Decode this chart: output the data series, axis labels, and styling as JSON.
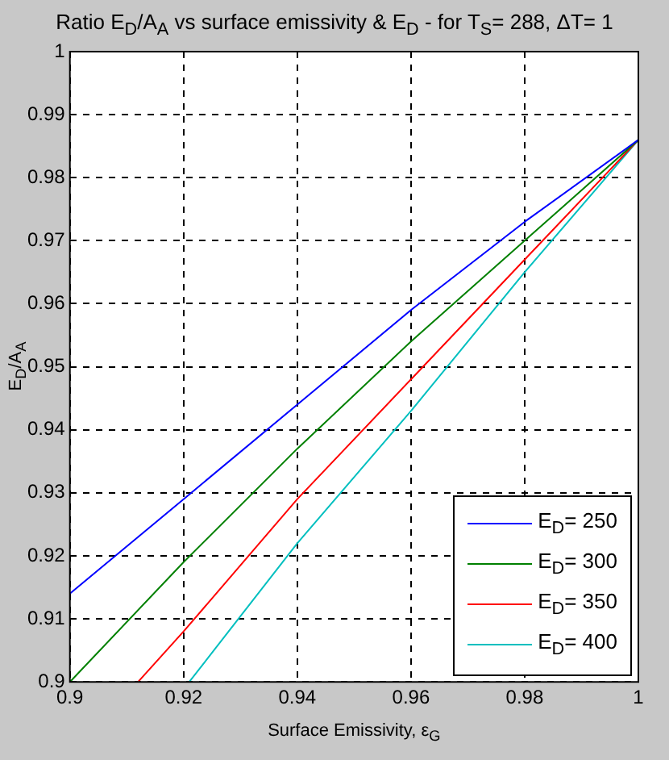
{
  "chart_data": {
    "type": "line",
    "title": "Ratio E$_{D}$/A$_{A}$ vs surface emissivity & E$_{D}$ - for T$_{S}$= 288, ΔT= 1",
    "xlabel": "Surface Emissivity, ε$_{G}$",
    "ylabel": "E$_{D}$/A$_{A}$",
    "x": [
      0.9,
      0.92,
      0.94,
      0.96,
      0.98,
      1
    ],
    "series": [
      {
        "name": "E$_{D}$= 250",
        "color": "#0000ff",
        "values": [
          0.914,
          0.929,
          0.944,
          0.959,
          0.973,
          0.986
        ]
      },
      {
        "name": "E$_{D}$= 300",
        "color": "#008000",
        "values": [
          0.9,
          0.919,
          0.937,
          0.954,
          0.97,
          0.986
        ]
      },
      {
        "name": "E$_{D}$= 350",
        "color": "#ff0000",
        "x": [
          0.912,
          0.92,
          0.94,
          0.96,
          0.98,
          1
        ],
        "values": [
          0.9,
          0.908,
          0.929,
          0.948,
          0.967,
          0.986
        ]
      },
      {
        "name": "E$_{D}$= 400",
        "color": "#00bfbf",
        "x": [
          0.921,
          0.94,
          0.96,
          0.98,
          1
        ],
        "values": [
          0.9,
          0.922,
          0.943,
          0.965,
          0.986
        ]
      }
    ],
    "xlim": [
      0.9,
      1
    ],
    "ylim": [
      0.9,
      1
    ],
    "xticks": [
      0.9,
      0.92,
      0.94,
      0.96,
      0.98,
      1
    ],
    "yticks": [
      0.9,
      0.91,
      0.92,
      0.93,
      0.94,
      0.95,
      0.96,
      0.97,
      0.98,
      0.99,
      1
    ],
    "grid": true,
    "legend": "bottom right"
  }
}
